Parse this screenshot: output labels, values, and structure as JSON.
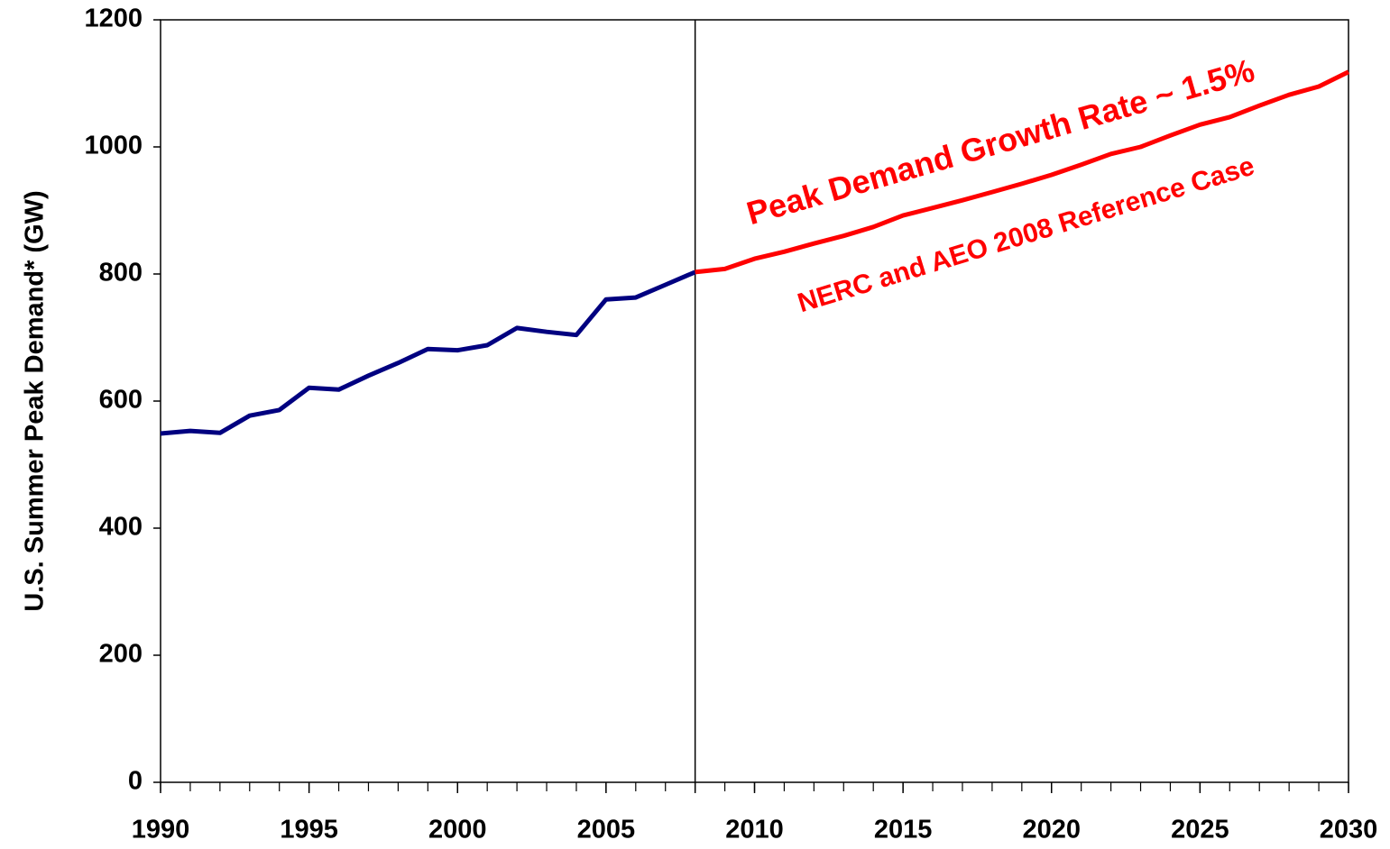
{
  "chart_data": {
    "type": "line",
    "y_label": "U.S. Summer Peak Demand* (GW)",
    "annotations": [
      "Peak Demand Growth Rate ~ 1.5%",
      "NERC and AEO 2008 Reference Case"
    ],
    "annotation_color": "#ff0000",
    "xlim": [
      1990,
      2030
    ],
    "xticks": [
      1990,
      1995,
      2000,
      2005,
      2010,
      2015,
      2020,
      2025,
      2030
    ],
    "ylim": [
      0,
      1200
    ],
    "yticks": [
      0,
      200,
      400,
      600,
      800,
      1000,
      1200
    ],
    "vline": 2008,
    "grid": false,
    "series": [
      {
        "color": "#000080",
        "x": [
          1990,
          1991,
          1992,
          1993,
          1994,
          1995,
          1996,
          1997,
          1998,
          1999,
          2000,
          2001,
          2002,
          2003,
          2004,
          2005,
          2006,
          2007,
          2008
        ],
        "values": [
          549,
          553,
          550,
          577,
          586,
          621,
          618,
          640,
          660,
          682,
          680,
          688,
          715,
          709,
          704,
          760,
          763,
          783,
          803
        ]
      },
      {
        "color": "#ff0000",
        "x": [
          2008,
          2009,
          2010,
          2011,
          2012,
          2013,
          2014,
          2015,
          2016,
          2017,
          2018,
          2019,
          2020,
          2021,
          2022,
          2023,
          2024,
          2025,
          2026,
          2027,
          2028,
          2029,
          2030
        ],
        "values": [
          803,
          808,
          824,
          835,
          848,
          860,
          874,
          892,
          904,
          916,
          929,
          942,
          956,
          972,
          989,
          1000,
          1018,
          1035,
          1047,
          1065,
          1082,
          1095,
          1118
        ]
      }
    ]
  }
}
